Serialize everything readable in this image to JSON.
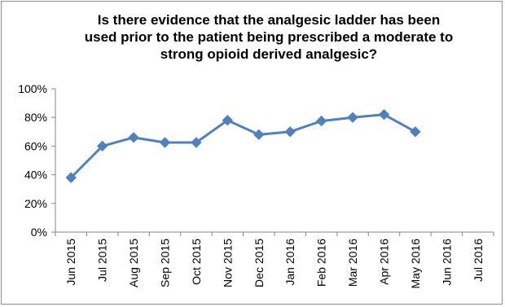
{
  "chart_data": {
    "type": "line",
    "title_lines": [
      "Is there evidence that the analgesic ladder has been",
      "used prior to the patient being prescribed a moderate to",
      "strong opioid derived analgesic?"
    ],
    "title": "Is there evidence that the analgesic ladder has been used prior to the patient being prescribed a moderate to strong opioid derived analgesic?",
    "xlabel": "",
    "ylabel": "",
    "categories": [
      "Jun 2015",
      "Jul 2015",
      "Aug 2015",
      "Sep 2015",
      "Oct 2015",
      "Nov 2015",
      "Dec 2015",
      "Jan 2016",
      "Feb 2016",
      "Mar 2016",
      "Apr 2016",
      "May 2016",
      "Jun 2016",
      "Jul 2016"
    ],
    "y_tick_labels": [
      "100%",
      "80%",
      "60%",
      "40%",
      "20%",
      "0%"
    ],
    "ylim": [
      0,
      100
    ],
    "y_ticks": [
      100,
      80,
      60,
      40,
      20,
      0
    ],
    "series": [
      {
        "values": [
          38,
          60,
          66,
          62.5,
          62.5,
          78,
          68,
          70,
          77.5,
          80,
          82,
          70,
          null,
          null
        ]
      }
    ],
    "grid": false,
    "legend": "none",
    "line_color": "#4f81bd",
    "marker": "diamond"
  }
}
